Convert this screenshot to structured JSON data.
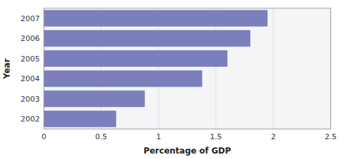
{
  "chart_data": {
    "type": "bar",
    "orientation": "horizontal",
    "categories": [
      "2002",
      "2003",
      "2004",
      "2005",
      "2006",
      "2007"
    ],
    "values": [
      0.63,
      0.88,
      1.38,
      1.6,
      1.8,
      1.95
    ],
    "color": "#7b7fbc",
    "xlabel": "Percentage of GDP",
    "ylabel": "Year",
    "xlim": [
      0,
      2.5
    ],
    "xticks": [
      0,
      0.5,
      1,
      1.5,
      2,
      2.5
    ],
    "grid": true
  }
}
